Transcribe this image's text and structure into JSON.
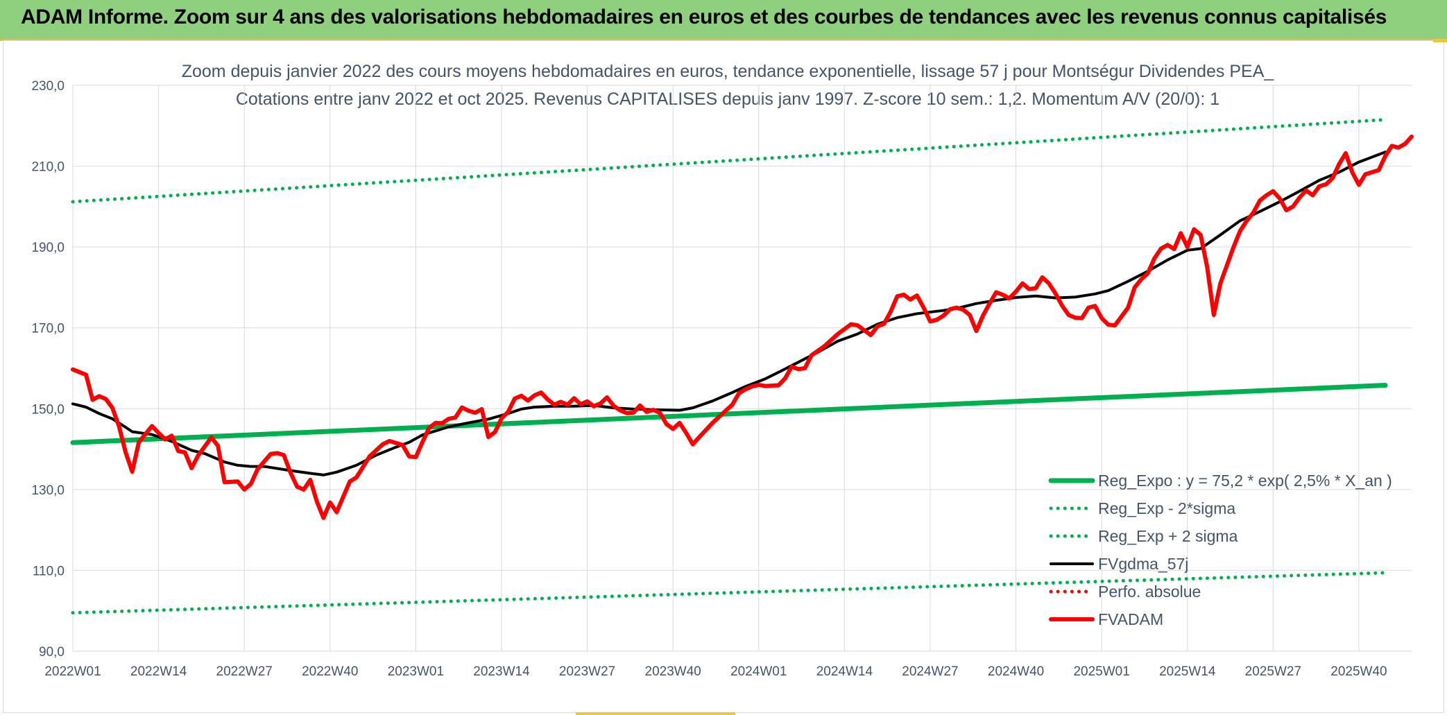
{
  "banner": {
    "title": "ADAM Informe. Zoom sur 4 ans des valorisations hebdomadaires en euros et des courbes de tendances avec les revenus connus capitalisés"
  },
  "colors": {
    "banner_bg": "#8fd07f",
    "reg_green": "#00b050",
    "price_red": "#ff0000",
    "smooth_black": "#000000",
    "text": "#44546a",
    "grid": "#d9d9d9"
  },
  "chart_data": {
    "type": "line",
    "subtitle_line1": "Zoom depuis janvier 2022 des cours moyens hebdomadaires en euros, tendance exponentielle, lissage 57 j pour Montségur Dividendes PEA_",
    "subtitle_line2": "Cotations entre janv 2022 et oct 2025. Revenus CAPITALISES depuis janv 1997. Z-score 10 sem.: 1,2. Momentum A/V (20/0): 1",
    "ylim": [
      90,
      230
    ],
    "y_ticks": [
      "90,0",
      "110,0",
      "130,0",
      "150,0",
      "170,0",
      "190,0",
      "210,0",
      "230,0"
    ],
    "x_ticks": [
      "2022W01",
      "2022W14",
      "2022W27",
      "2022W40",
      "2023W01",
      "2023W14",
      "2023W27",
      "2023W40",
      "2024W01",
      "2024W14",
      "2024W27",
      "2024W40",
      "2025W01",
      "2025W14",
      "2025W27",
      "2025W40"
    ],
    "grid": "horizontal and vertical",
    "legend_position": "bottom-right",
    "series": [
      {
        "name": "Reg_Expo : y = 75,2 * exp( 2,5% *  X_an )",
        "style": "solid-thick",
        "color": "#00b050",
        "points": [
          [
            "2022W01",
            141.6
          ],
          [
            "2025W44",
            155.8
          ]
        ]
      },
      {
        "name": "Reg_Exp - 2*sigma",
        "style": "dotted",
        "color": "#00b050",
        "points": [
          [
            "2022W01",
            99.5
          ],
          [
            "2025W44",
            109.4
          ]
        ]
      },
      {
        "name": "Reg_Exp + 2 sigma",
        "style": "dotted",
        "color": "#00b050",
        "points": [
          [
            "2022W01",
            201.2
          ],
          [
            "2025W44",
            221.5
          ]
        ]
      },
      {
        "name": "FVgdma_57j",
        "style": "solid",
        "color": "#000000",
        "points": [
          [
            "2022W01",
            151.2
          ],
          [
            "2022W03",
            150.4
          ],
          [
            "2022W05",
            148.8
          ],
          [
            "2022W07",
            147.5
          ],
          [
            "2022W09",
            145.4
          ],
          [
            "2022W10",
            144.3
          ],
          [
            "2022W13",
            143.6
          ],
          [
            "2022W16",
            141.9
          ],
          [
            "2022W19",
            139.7
          ],
          [
            "2022W21",
            138.9
          ],
          [
            "2022W24",
            136.8
          ],
          [
            "2022W26",
            136.0
          ],
          [
            "2022W28",
            135.7
          ],
          [
            "2022W30",
            135.7
          ],
          [
            "2022W34",
            134.7
          ],
          [
            "2022W37",
            134.0
          ],
          [
            "2022W39",
            133.6
          ],
          [
            "2022W41",
            134.3
          ],
          [
            "2022W44",
            136.0
          ],
          [
            "2022W47",
            138.5
          ],
          [
            "2022W50",
            140.5
          ],
          [
            "2022W52",
            141.7
          ],
          [
            "2023W02",
            143.5
          ],
          [
            "2023W06",
            145.5
          ],
          [
            "2023W09",
            146.5
          ],
          [
            "2023W12",
            147.4
          ],
          [
            "2023W15",
            148.8
          ],
          [
            "2023W17",
            149.9
          ],
          [
            "2023W19",
            150.4
          ],
          [
            "2023W22",
            150.6
          ],
          [
            "2023W25",
            150.6
          ],
          [
            "2023W28",
            150.8
          ],
          [
            "2023W31",
            150.2
          ],
          [
            "2023W34",
            149.9
          ],
          [
            "2023W38",
            149.7
          ],
          [
            "2023W41",
            149.6
          ],
          [
            "2023W43",
            150.2
          ],
          [
            "2023W46",
            151.9
          ],
          [
            "2023W49",
            154.0
          ],
          [
            "2023W51",
            155.5
          ],
          [
            "2024W02",
            157.4
          ],
          [
            "2024W04",
            159.0
          ],
          [
            "2024W07",
            161.5
          ],
          [
            "2024W10",
            164.0
          ],
          [
            "2024W13",
            166.7
          ],
          [
            "2024W16",
            168.5
          ],
          [
            "2024W19",
            170.9
          ],
          [
            "2024W22",
            172.5
          ],
          [
            "2024W25",
            173.5
          ],
          [
            "2024W29",
            174.3
          ],
          [
            "2024W31",
            174.8
          ],
          [
            "2024W34",
            176.0
          ],
          [
            "2024W37",
            176.8
          ],
          [
            "2024W40",
            177.5
          ],
          [
            "2024W43",
            177.9
          ],
          [
            "2024W46",
            177.4
          ],
          [
            "2024W49",
            177.6
          ],
          [
            "2024W52",
            178.4
          ],
          [
            "2025W02",
            179.2
          ],
          [
            "2025W05",
            181.5
          ],
          [
            "2025W08",
            184.0
          ],
          [
            "2025W11",
            186.8
          ],
          [
            "2025W14",
            189.2
          ],
          [
            "2025W16",
            189.6
          ],
          [
            "2025W19",
            193.0
          ],
          [
            "2025W22",
            196.5
          ],
          [
            "2025W25",
            198.8
          ],
          [
            "2025W28",
            201.2
          ],
          [
            "2025W31",
            203.8
          ],
          [
            "2025W34",
            206.5
          ],
          [
            "2025W37",
            208.5
          ],
          [
            "2025W40",
            211.0
          ],
          [
            "2025W44",
            213.5
          ]
        ]
      },
      {
        "name": "Perfo. absolue",
        "style": "dotted",
        "color": "#ff0000",
        "points": []
      },
      {
        "name": "FVADAM",
        "style": "solid-thick",
        "color": "#ff0000",
        "points": [
          [
            "2022W01",
            159.7
          ],
          [
            "2022W03",
            158.4
          ],
          [
            "2022W04",
            152.2
          ],
          [
            "2022W05",
            153.1
          ],
          [
            "2022W06",
            152.4
          ],
          [
            "2022W07",
            150.2
          ],
          [
            "2022W08",
            145.6
          ],
          [
            "2022W09",
            139.2
          ],
          [
            "2022W10",
            134.4
          ],
          [
            "2022W11",
            141.7
          ],
          [
            "2022W13",
            145.7
          ],
          [
            "2022W14",
            144.0
          ],
          [
            "2022W15",
            142.4
          ],
          [
            "2022W16",
            143.3
          ],
          [
            "2022W17",
            139.5
          ],
          [
            "2022W18",
            139.2
          ],
          [
            "2022W19",
            135.3
          ],
          [
            "2022W20",
            138.4
          ],
          [
            "2022W22",
            142.9
          ],
          [
            "2022W23",
            140.8
          ],
          [
            "2022W24",
            131.8
          ],
          [
            "2022W26",
            132.0
          ],
          [
            "2022W27",
            130.0
          ],
          [
            "2022W28",
            131.4
          ],
          [
            "2022W29",
            135.0
          ],
          [
            "2022W31",
            138.8
          ],
          [
            "2022W32",
            139.0
          ],
          [
            "2022W33",
            138.5
          ],
          [
            "2022W34",
            134.2
          ],
          [
            "2022W35",
            130.7
          ],
          [
            "2022W36",
            130.0
          ],
          [
            "2022W37",
            132.4
          ],
          [
            "2022W38",
            127.0
          ],
          [
            "2022W39",
            123.0
          ],
          [
            "2022W40",
            126.8
          ],
          [
            "2022W41",
            124.4
          ],
          [
            "2022W42",
            128.2
          ],
          [
            "2022W43",
            132.0
          ],
          [
            "2022W44",
            133.0
          ],
          [
            "2022W46",
            138.2
          ],
          [
            "2022W48",
            141.2
          ],
          [
            "2022W49",
            142.0
          ],
          [
            "2022W50",
            141.5
          ],
          [
            "2022W51",
            141.0
          ],
          [
            "2022W52",
            138.2
          ],
          [
            "2023W01",
            138.0
          ],
          [
            "2023W02",
            141.7
          ],
          [
            "2023W03",
            145.2
          ],
          [
            "2023W04",
            146.5
          ],
          [
            "2023W05",
            146.4
          ],
          [
            "2023W06",
            147.5
          ],
          [
            "2023W07",
            147.8
          ],
          [
            "2023W08",
            150.3
          ],
          [
            "2023W09",
            149.5
          ],
          [
            "2023W10",
            149.0
          ],
          [
            "2023W11",
            149.9
          ],
          [
            "2023W12",
            143.0
          ],
          [
            "2023W13",
            144.2
          ],
          [
            "2023W14",
            147.6
          ],
          [
            "2023W15",
            149.2
          ],
          [
            "2023W16",
            152.5
          ],
          [
            "2023W17",
            153.2
          ],
          [
            "2023W18",
            152.0
          ],
          [
            "2023W19",
            153.3
          ],
          [
            "2023W20",
            154.0
          ],
          [
            "2023W21",
            152.3
          ],
          [
            "2023W22",
            151.0
          ],
          [
            "2023W23",
            151.7
          ],
          [
            "2023W24",
            151.0
          ],
          [
            "2023W25",
            152.6
          ],
          [
            "2023W26",
            151.1
          ],
          [
            "2023W27",
            151.8
          ],
          [
            "2023W28",
            150.6
          ],
          [
            "2023W29",
            151.3
          ],
          [
            "2023W30",
            152.8
          ],
          [
            "2023W31",
            150.7
          ],
          [
            "2023W32",
            149.6
          ],
          [
            "2023W33",
            148.9
          ],
          [
            "2023W34",
            149.0
          ],
          [
            "2023W35",
            150.8
          ],
          [
            "2023W36",
            149.2
          ],
          [
            "2023W37",
            149.7
          ],
          [
            "2023W38",
            149.0
          ],
          [
            "2023W39",
            146.2
          ],
          [
            "2023W40",
            145.0
          ],
          [
            "2023W41",
            146.5
          ],
          [
            "2023W42",
            144.0
          ],
          [
            "2023W43",
            141.2
          ],
          [
            "2023W44",
            143.0
          ],
          [
            "2023W46",
            146.5
          ],
          [
            "2023W47",
            148.0
          ],
          [
            "2023W48",
            149.5
          ],
          [
            "2023W49",
            151.0
          ],
          [
            "2023W50",
            153.8
          ],
          [
            "2023W51",
            154.8
          ],
          [
            "2023W52",
            155.5
          ],
          [
            "2024W01",
            155.9
          ],
          [
            "2024W02",
            155.6
          ],
          [
            "2024W04",
            155.8
          ],
          [
            "2024W05",
            157.5
          ],
          [
            "2024W06",
            160.4
          ],
          [
            "2024W07",
            159.8
          ],
          [
            "2024W08",
            160.0
          ],
          [
            "2024W09",
            163.2
          ],
          [
            "2024W11",
            165.5
          ],
          [
            "2024W13",
            168.5
          ],
          [
            "2024W15",
            170.9
          ],
          [
            "2024W16",
            170.6
          ],
          [
            "2024W17",
            169.4
          ],
          [
            "2024W18",
            168.2
          ],
          [
            "2024W19",
            170.4
          ],
          [
            "2024W20",
            171.0
          ],
          [
            "2024W21",
            174.0
          ],
          [
            "2024W22",
            177.8
          ],
          [
            "2024W23",
            178.2
          ],
          [
            "2024W24",
            177.0
          ],
          [
            "2024W25",
            178.0
          ],
          [
            "2024W26",
            175.0
          ],
          [
            "2024W27",
            171.6
          ],
          [
            "2024W28",
            172.0
          ],
          [
            "2024W29",
            173.0
          ],
          [
            "2024W30",
            174.6
          ],
          [
            "2024W31",
            175.0
          ],
          [
            "2024W32",
            174.5
          ],
          [
            "2024W33",
            173.2
          ],
          [
            "2024W34",
            169.2
          ],
          [
            "2024W35",
            173.0
          ],
          [
            "2024W36",
            176.0
          ],
          [
            "2024W37",
            178.8
          ],
          [
            "2024W38",
            178.2
          ],
          [
            "2024W39",
            177.3
          ],
          [
            "2024W40",
            179.0
          ],
          [
            "2024W41",
            181.0
          ],
          [
            "2024W42",
            179.6
          ],
          [
            "2024W43",
            179.8
          ],
          [
            "2024W44",
            182.5
          ],
          [
            "2024W45",
            181.0
          ],
          [
            "2024W46",
            178.5
          ],
          [
            "2024W47",
            175.5
          ],
          [
            "2024W48",
            173.2
          ],
          [
            "2024W49",
            172.5
          ],
          [
            "2024W50",
            172.4
          ],
          [
            "2024W51",
            175.0
          ],
          [
            "2024W52",
            175.4
          ],
          [
            "2025W01",
            172.4
          ],
          [
            "2025W02",
            170.8
          ],
          [
            "2025W03",
            170.6
          ],
          [
            "2025W04",
            172.8
          ],
          [
            "2025W05",
            175.0
          ],
          [
            "2025W06",
            180.0
          ],
          [
            "2025W07",
            182.0
          ],
          [
            "2025W08",
            183.5
          ],
          [
            "2025W09",
            187.2
          ],
          [
            "2025W10",
            189.6
          ],
          [
            "2025W11",
            190.5
          ],
          [
            "2025W12",
            189.5
          ],
          [
            "2025W13",
            193.4
          ],
          [
            "2025W14",
            190.0
          ],
          [
            "2025W15",
            194.4
          ],
          [
            "2025W16",
            193.0
          ],
          [
            "2025W17",
            185.0
          ],
          [
            "2025W18",
            173.2
          ],
          [
            "2025W19",
            181.0
          ],
          [
            "2025W20",
            185.5
          ],
          [
            "2025W21",
            190.0
          ],
          [
            "2025W22",
            194.0
          ],
          [
            "2025W23",
            196.5
          ],
          [
            "2025W24",
            198.5
          ],
          [
            "2025W25",
            201.5
          ],
          [
            "2025W26",
            202.8
          ],
          [
            "2025W27",
            203.8
          ],
          [
            "2025W28",
            202.0
          ],
          [
            "2025W29",
            199.1
          ],
          [
            "2025W30",
            200.0
          ],
          [
            "2025W31",
            202.2
          ],
          [
            "2025W32",
            204.0
          ],
          [
            "2025W33",
            202.8
          ],
          [
            "2025W34",
            205.0
          ],
          [
            "2025W35",
            205.5
          ],
          [
            "2025W36",
            207.0
          ],
          [
            "2025W37",
            210.5
          ],
          [
            "2025W38",
            213.2
          ],
          [
            "2025W39",
            208.5
          ],
          [
            "2025W40",
            205.4
          ],
          [
            "2025W41",
            208.0
          ],
          [
            "2025W42",
            208.5
          ],
          [
            "2025W43",
            209.0
          ],
          [
            "2025W44",
            212.5
          ],
          [
            "2025W45",
            215.0
          ],
          [
            "2025W46",
            214.6
          ],
          [
            "2025W47",
            215.5
          ],
          [
            "2025W48",
            217.3
          ]
        ]
      }
    ]
  }
}
